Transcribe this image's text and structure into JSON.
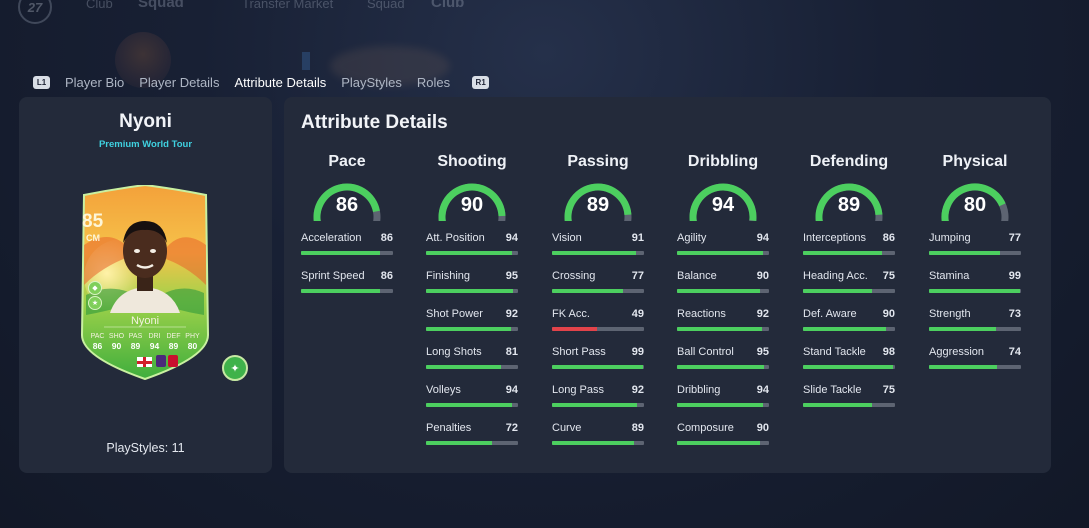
{
  "nav": {
    "logo": "27",
    "items": [
      "Club",
      "Squad",
      "Transfer Market",
      "Squad",
      "Club"
    ]
  },
  "tabs": {
    "left_key": "L1",
    "right_key": "R1",
    "items": [
      "Player Bio",
      "Player Details",
      "Attribute Details",
      "PlayStyles",
      "Roles"
    ],
    "active": "Attribute Details"
  },
  "player": {
    "name": "Nyoni",
    "card_type": "Premium World Tour",
    "playstyles_label": "PlayStyles: 11",
    "card": {
      "rating": "85",
      "position": "CM",
      "name": "Nyoni",
      "stats": [
        {
          "label": "PAC",
          "value": "86"
        },
        {
          "label": "SHO",
          "value": "90"
        },
        {
          "label": "PAS",
          "value": "89"
        },
        {
          "label": "DRI",
          "value": "94"
        },
        {
          "label": "DEF",
          "value": "89"
        },
        {
          "label": "PHY",
          "value": "80"
        }
      ]
    }
  },
  "attribute_details": {
    "title": "Attribute Details",
    "categories": [
      {
        "name": "Pace",
        "value": 86,
        "attributes": [
          {
            "name": "Acceleration",
            "value": 86
          },
          {
            "name": "Sprint Speed",
            "value": 86
          }
        ]
      },
      {
        "name": "Shooting",
        "value": 90,
        "attributes": [
          {
            "name": "Att. Position",
            "value": 94
          },
          {
            "name": "Finishing",
            "value": 95
          },
          {
            "name": "Shot Power",
            "value": 92
          },
          {
            "name": "Long Shots",
            "value": 81
          },
          {
            "name": "Volleys",
            "value": 94
          },
          {
            "name": "Penalties",
            "value": 72
          }
        ]
      },
      {
        "name": "Passing",
        "value": 89,
        "attributes": [
          {
            "name": "Vision",
            "value": 91
          },
          {
            "name": "Crossing",
            "value": 77
          },
          {
            "name": "FK Acc.",
            "value": 49
          },
          {
            "name": "Short Pass",
            "value": 99
          },
          {
            "name": "Long Pass",
            "value": 92
          },
          {
            "name": "Curve",
            "value": 89
          }
        ]
      },
      {
        "name": "Dribbling",
        "value": 94,
        "attributes": [
          {
            "name": "Agility",
            "value": 94
          },
          {
            "name": "Balance",
            "value": 90
          },
          {
            "name": "Reactions",
            "value": 92
          },
          {
            "name": "Ball Control",
            "value": 95
          },
          {
            "name": "Dribbling",
            "value": 94
          },
          {
            "name": "Composure",
            "value": 90
          }
        ]
      },
      {
        "name": "Defending",
        "value": 89,
        "attributes": [
          {
            "name": "Interceptions",
            "value": 86
          },
          {
            "name": "Heading Acc.",
            "value": 75
          },
          {
            "name": "Def. Aware",
            "value": 90
          },
          {
            "name": "Stand Tackle",
            "value": 98
          },
          {
            "name": "Slide Tackle",
            "value": 75
          }
        ]
      },
      {
        "name": "Physical",
        "value": 80,
        "attributes": [
          {
            "name": "Jumping",
            "value": 77
          },
          {
            "name": "Stamina",
            "value": 99
          },
          {
            "name": "Strength",
            "value": 73
          },
          {
            "name": "Aggression",
            "value": 74
          }
        ]
      }
    ]
  },
  "colors": {
    "good": "#4ccf5f",
    "low": "#e2434a",
    "track": "#5d6472",
    "accent_cyan": "#3fd1e0"
  }
}
